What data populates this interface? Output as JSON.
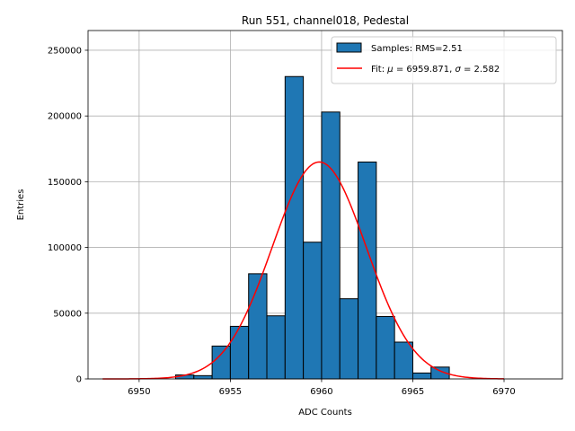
{
  "chart_data": {
    "type": "bar",
    "title": "Run 551, channel018, Pedestal",
    "xlabel": "ADC Counts",
    "ylabel": "Entries",
    "xlim": [
      6947.2,
      6973.2
    ],
    "ylim": [
      0,
      265000
    ],
    "x_ticks": [
      6950,
      6955,
      6960,
      6965,
      6970
    ],
    "y_ticks": [
      0,
      50000,
      100000,
      150000,
      200000,
      250000
    ],
    "grid": true,
    "legend_placement": "top-right",
    "histogram": {
      "name": "Samples: RMS=2.51",
      "bin_width": 1,
      "bin_starts": [
        6952,
        6953,
        6954,
        6955,
        6956,
        6957,
        6958,
        6959,
        6960,
        6961,
        6962,
        6963,
        6964,
        6965,
        6966
      ],
      "values": [
        3000,
        2500,
        25000,
        40000,
        80000,
        48000,
        230000,
        104000,
        203000,
        61000,
        165000,
        47500,
        28000,
        4500,
        9000
      ],
      "color": "#1f77b4"
    },
    "fit": {
      "name": "Fit: μ = 6959.871, σ = 2.582",
      "label_prefix": "Fit: ",
      "mu_symbol": "μ",
      "mu_text": " = 6959.871, ",
      "sigma_symbol": "σ",
      "sigma_text": " = 2.582",
      "mu": 6959.871,
      "sigma": 2.582,
      "amplitude": 165000,
      "x_range": [
        6948,
        6970
      ],
      "color": "#ff0000"
    }
  }
}
